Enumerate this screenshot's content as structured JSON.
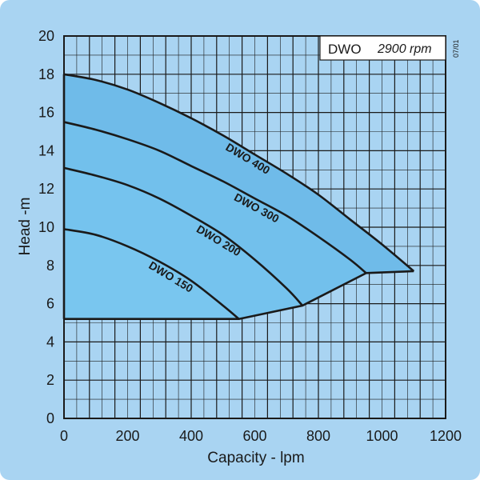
{
  "chart_data": {
    "type": "line",
    "xlabel": "Capacity - lpm",
    "ylabel": "Head -m",
    "xlim": [
      0,
      1200
    ],
    "ylim": [
      0,
      20
    ],
    "x_ticks": [
      "0",
      "200",
      "400",
      "600",
      "800",
      "1000",
      "1200"
    ],
    "y_ticks": [
      "0",
      "2",
      "4",
      "6",
      "8",
      "10",
      "12",
      "14",
      "16",
      "18",
      "20"
    ],
    "grid": true,
    "legend": {
      "name": "DWO",
      "speed": "2900 rpm"
    },
    "date_code": "07/01",
    "series": [
      {
        "name": "DWO 400",
        "x": [
          0,
          100,
          200,
          300,
          400,
          500,
          600,
          700,
          800,
          900,
          1000,
          1100
        ],
        "y": [
          18.0,
          17.7,
          17.2,
          16.5,
          15.7,
          14.8,
          13.8,
          12.8,
          11.7,
          10.4,
          9.1,
          7.7
        ]
      },
      {
        "name": "DWO 300",
        "x": [
          0,
          100,
          200,
          300,
          400,
          500,
          600,
          700,
          800,
          900,
          950
        ],
        "y": [
          15.5,
          15.1,
          14.6,
          14.0,
          13.2,
          12.4,
          11.5,
          10.6,
          9.5,
          8.3,
          7.6
        ]
      },
      {
        "name": "DWO 200",
        "x": [
          0,
          100,
          200,
          300,
          400,
          500,
          600,
          700,
          750
        ],
        "y": [
          13.1,
          12.7,
          12.2,
          11.5,
          10.6,
          9.6,
          8.3,
          6.8,
          5.9
        ]
      },
      {
        "name": "DWO 150",
        "x": [
          0,
          100,
          200,
          300,
          400,
          500,
          550
        ],
        "y": [
          9.9,
          9.6,
          9.0,
          8.2,
          7.2,
          5.9,
          5.2
        ]
      }
    ],
    "operating_boundary": {
      "x": [
        0,
        550,
        750,
        950,
        1100
      ],
      "y": [
        5.2,
        5.2,
        5.9,
        7.6,
        7.7
      ]
    }
  }
}
